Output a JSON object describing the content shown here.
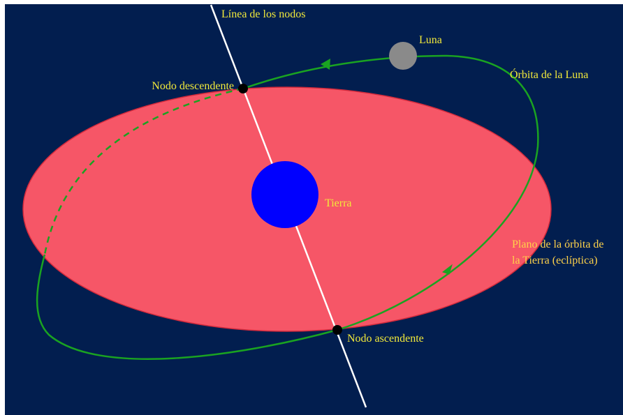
{
  "diagram": {
    "colors": {
      "background": "#021e4f",
      "ecliptic_fill": "#f65667",
      "ecliptic_stroke": "#d42a3c",
      "moon_orbit": "#1aa321",
      "node_line": "#ffffff",
      "earth": "#0000ff",
      "moon": "#8a8a8a",
      "node_marker": "#000000",
      "label": "#f2e93a",
      "label_plane": "#ffd24a"
    },
    "labels": {
      "line_of_nodes": "Línea de los nodos",
      "moon": "Luna",
      "moon_orbit": "Órbita de la Luna",
      "descending_node": "Nodo descendente",
      "earth": "Tierra",
      "ecliptic_line1": "Plano de la órbita de",
      "ecliptic_line2": "la Tierra (eclíptica)",
      "ascending_node": "Nodo ascendente"
    }
  }
}
